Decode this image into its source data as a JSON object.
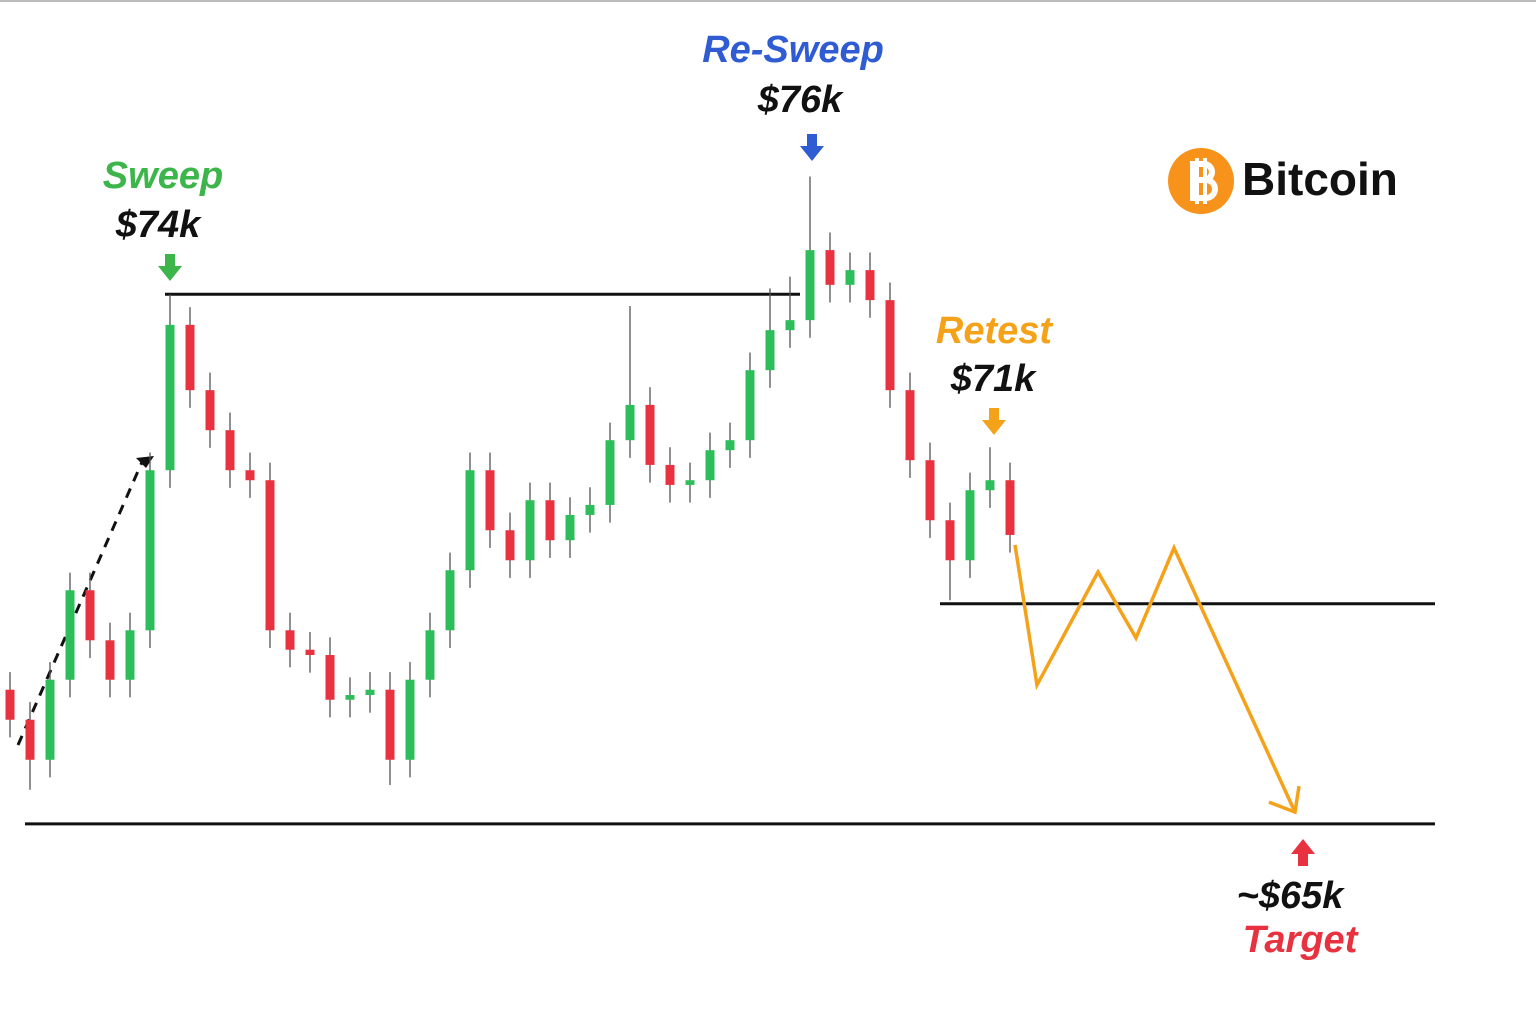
{
  "chart_data": {
    "type": "candlestick",
    "title": "Bitcoin",
    "ylim": [
      61.6,
      79
    ],
    "up_color": "#2dbd5a",
    "down_color": "#e8323f",
    "candles": {
      "open": [
        67.28,
        66.77,
        66.09,
        67.45,
        68.97,
        68.12,
        67.45,
        68.29,
        71.01,
        73.48,
        72.37,
        71.69,
        71.01,
        70.84,
        68.29,
        67.96,
        67.87,
        67.11,
        67.19,
        67.28,
        66.09,
        67.45,
        68.29,
        69.31,
        71.01,
        69.99,
        69.48,
        70.5,
        69.82,
        70.25,
        70.42,
        71.52,
        72.12,
        71.1,
        70.76,
        70.84,
        71.35,
        71.52,
        72.71,
        73.39,
        73.56,
        74.75,
        74.16,
        74.41,
        73.9,
        72.37,
        71.18,
        70.16,
        69.48,
        70.67,
        70.84
      ],
      "high": [
        67.58,
        67.07,
        67.75,
        69.27,
        69.27,
        68.42,
        68.59,
        71.31,
        74.0,
        73.78,
        72.67,
        71.99,
        71.31,
        71.14,
        68.59,
        68.26,
        68.17,
        67.49,
        67.58,
        67.58,
        67.75,
        68.59,
        69.61,
        71.31,
        71.31,
        70.29,
        70.8,
        70.8,
        70.55,
        70.72,
        71.82,
        73.8,
        72.42,
        71.4,
        71.14,
        71.65,
        71.82,
        73.01,
        74.1,
        74.3,
        76.0,
        75.05,
        74.71,
        74.71,
        74.2,
        72.67,
        71.48,
        70.46,
        70.97,
        71.4,
        71.14
      ],
      "low": [
        66.47,
        65.58,
        65.79,
        67.15,
        67.82,
        67.15,
        67.15,
        67.99,
        70.71,
        72.07,
        71.39,
        70.71,
        70.54,
        67.99,
        67.66,
        67.57,
        66.81,
        66.81,
        66.89,
        65.66,
        65.79,
        67.15,
        67.99,
        69.01,
        69.69,
        69.18,
        69.18,
        69.52,
        69.52,
        69.95,
        70.12,
        71.22,
        70.8,
        70.46,
        70.46,
        70.54,
        71.05,
        71.22,
        72.41,
        73.09,
        73.26,
        73.86,
        73.86,
        73.6,
        72.07,
        70.88,
        69.86,
        68.8,
        69.18,
        70.37,
        69.61
      ],
      "close": [
        66.77,
        66.09,
        67.45,
        68.97,
        68.12,
        67.45,
        68.29,
        71.01,
        73.48,
        72.37,
        71.69,
        71.01,
        70.84,
        68.29,
        67.96,
        67.87,
        67.11,
        67.19,
        67.28,
        66.09,
        67.45,
        68.29,
        69.31,
        71.01,
        69.99,
        69.48,
        70.5,
        69.82,
        70.25,
        70.42,
        71.52,
        72.12,
        71.1,
        70.76,
        70.84,
        71.35,
        71.52,
        72.71,
        73.39,
        73.56,
        74.75,
        74.16,
        74.41,
        73.9,
        72.37,
        71.18,
        70.16,
        69.48,
        70.67,
        70.84,
        69.91
      ]
    },
    "levels": [
      74,
      68.74,
      65
    ],
    "projection": {
      "color": "#f5a21b",
      "values": [
        69.74,
        67.36,
        69.28,
        68.16,
        69.69,
        65.2
      ]
    },
    "annotations": [
      {
        "label": "Sweep",
        "price": "$74k",
        "value": 74,
        "color": "#3cb54a"
      },
      {
        "label": "Re-Sweep",
        "price": "$76k",
        "value": 76,
        "color": "#2f5bd3"
      },
      {
        "label": "Retest",
        "price": "$71k",
        "value": 71,
        "color": "#f5a21b"
      },
      {
        "label": "Target",
        "price": "~$65k",
        "value": 65,
        "color": "#e8323f"
      }
    ]
  }
}
